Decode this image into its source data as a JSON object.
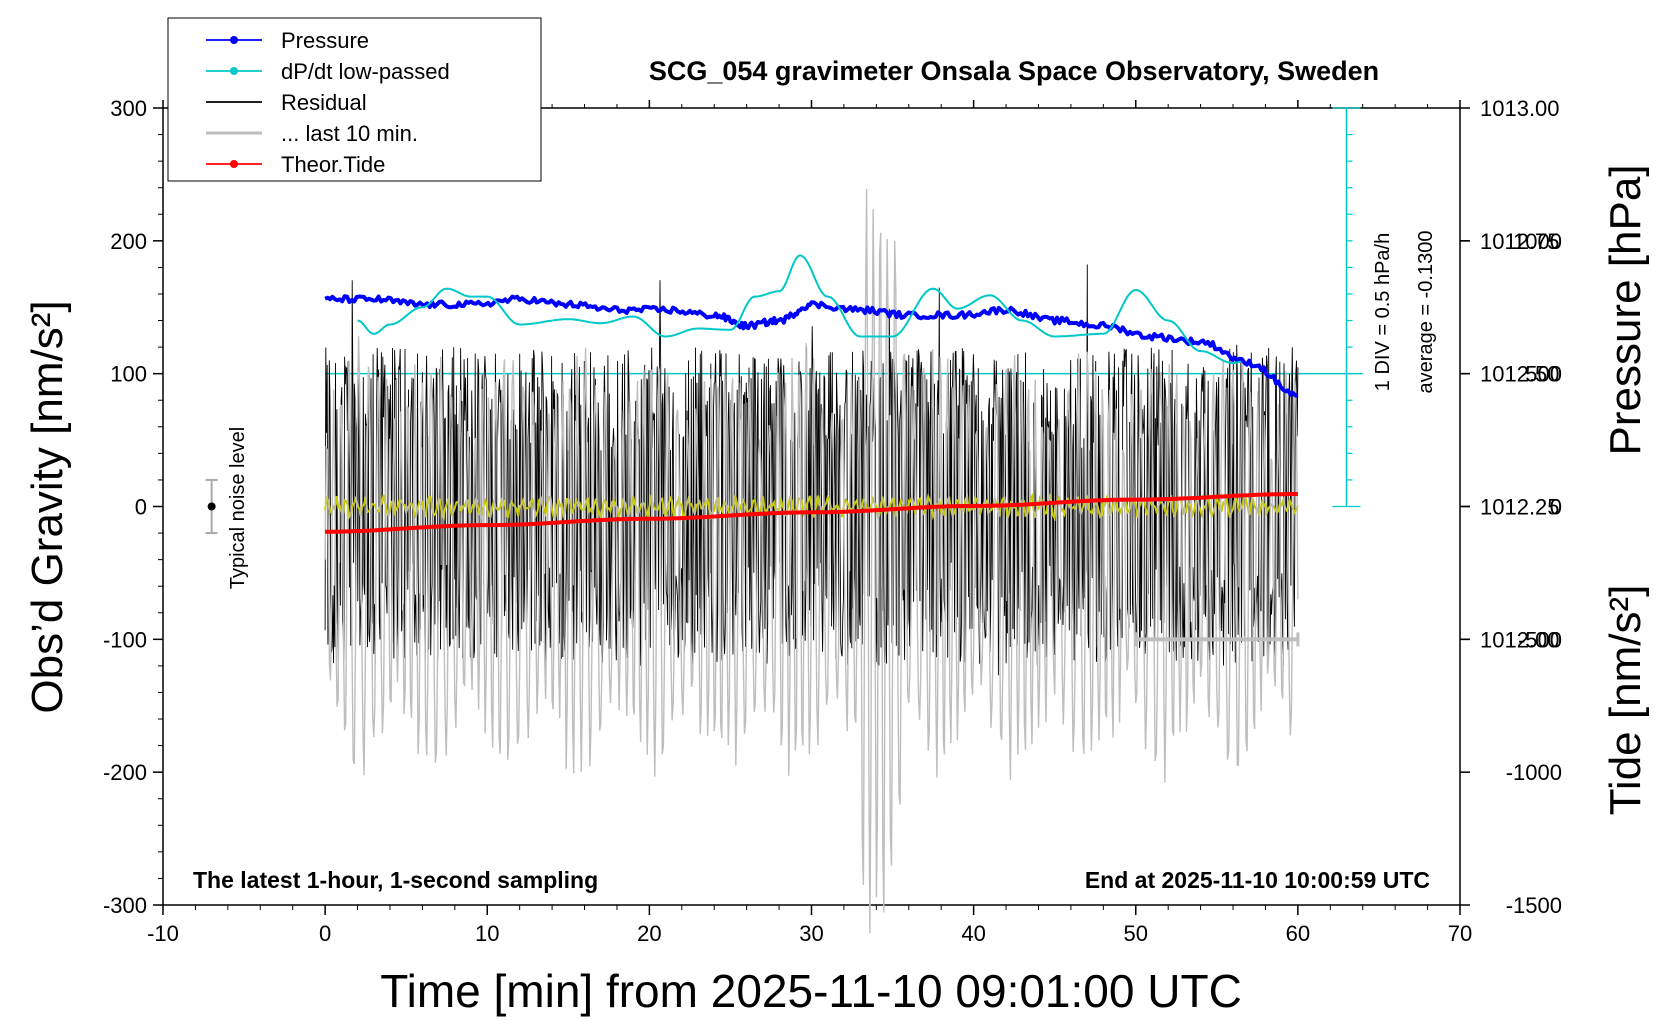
{
  "chart_data": {
    "type": "line",
    "title": "SCG_054 gravimeter Onsala Space Observatory, Sweden",
    "xlabel": "Time [min] from 2025-11-10 09:01:00 UTC",
    "ylabel_left": "Obs’d Gravity [nm/s²]",
    "ylabel_right_top": "Pressure [hPa]",
    "ylabel_right_bottom": "Tide [nm/s²]",
    "xlim": [
      -10,
      70
    ],
    "ylim_gravity": [
      -300,
      300
    ],
    "ylim_pressure": [
      1011.5,
      1013.0
    ],
    "ylim_tide": [
      -1500,
      1500
    ],
    "x_ticks": [
      "-10",
      "0",
      "10",
      "20",
      "30",
      "40",
      "50",
      "60",
      "70"
    ],
    "gravity_ticks": [
      "300",
      "200",
      "100",
      "0",
      "-100",
      "-200",
      "-300"
    ],
    "pressure_ticks": [
      "1013.00",
      "1012.75",
      "1012.50",
      "1012.25",
      "1012.00"
    ],
    "tide_ticks": [
      "1000",
      "500",
      "0",
      "-500",
      "-1000",
      "-1500"
    ],
    "legend": [
      {
        "label": "Pressure",
        "color": "#0000ff",
        "marker": true
      },
      {
        "label": "dP/dt low-passed",
        "color": "#00c8c8",
        "marker": true
      },
      {
        "label": "Residual",
        "color": "#000000",
        "marker": false
      },
      {
        "label": "... last 10 min.",
        "color": "#bebebe",
        "marker": false
      },
      {
        "label": "Theor.Tide",
        "color": "#ff0000",
        "marker": true
      }
    ],
    "legend_position": "top-left",
    "annotations": {
      "bottom_left": "The latest 1-hour, 1-second sampling",
      "bottom_right": "End at 2025-11-10 10:00:59 UTC",
      "noise": "Typical noise level",
      "dpdt_scale": "1 DIV = 0.5 hPa/h",
      "dpdt_average": "average = -0.1300"
    },
    "series": [
      {
        "name": "Pressure",
        "axis": "pressure",
        "color": "#0000ff",
        "x": [
          0,
          3,
          6,
          9,
          12,
          15,
          18,
          21,
          24,
          26,
          28,
          30,
          33,
          36,
          39,
          42,
          45,
          48,
          51,
          54,
          57,
          60
        ],
        "y": [
          1012.64,
          1012.64,
          1012.63,
          1012.63,
          1012.64,
          1012.63,
          1012.62,
          1012.62,
          1012.61,
          1012.59,
          1012.6,
          1012.63,
          1012.62,
          1012.61,
          1012.61,
          1012.62,
          1012.6,
          1012.59,
          1012.57,
          1012.56,
          1012.52,
          1012.46
        ]
      },
      {
        "name": "dP/dt low-passed",
        "axis": "gravity",
        "color": "#00c8c8",
        "x": [
          2,
          3,
          4,
          6,
          7.5,
          9,
          10,
          12,
          15,
          17,
          19,
          21,
          23,
          25,
          26.5,
          28,
          29.3,
          31,
          33,
          35,
          37.5,
          39,
          41,
          43,
          45,
          48,
          50,
          52,
          54,
          56,
          56.5
        ],
        "y": [
          140,
          130,
          137,
          150,
          164,
          158,
          158,
          137,
          141,
          138,
          143,
          128,
          134,
          133,
          158,
          162,
          189,
          158,
          128,
          128,
          164,
          149,
          159,
          140,
          128,
          130,
          163,
          140,
          117,
          108,
          109
        ]
      },
      {
        "name": "Theor.Tide",
        "axis": "tide",
        "color": "#ff0000",
        "x": [
          0,
          10,
          20,
          30,
          40,
          50,
          60
        ],
        "y": [
          -95,
          -70,
          -46,
          -22,
          2,
          26,
          47
        ]
      }
    ],
    "residual": {
      "x_range": [
        0,
        60
      ],
      "approx_amplitude": 120,
      "smoothed_color": "#c8c800"
    },
    "last10_range": [
      50,
      60
    ],
    "noise_level": {
      "x": -7,
      "center": 0,
      "half_range": 20
    },
    "pressure_average_line": 1012.5
  }
}
